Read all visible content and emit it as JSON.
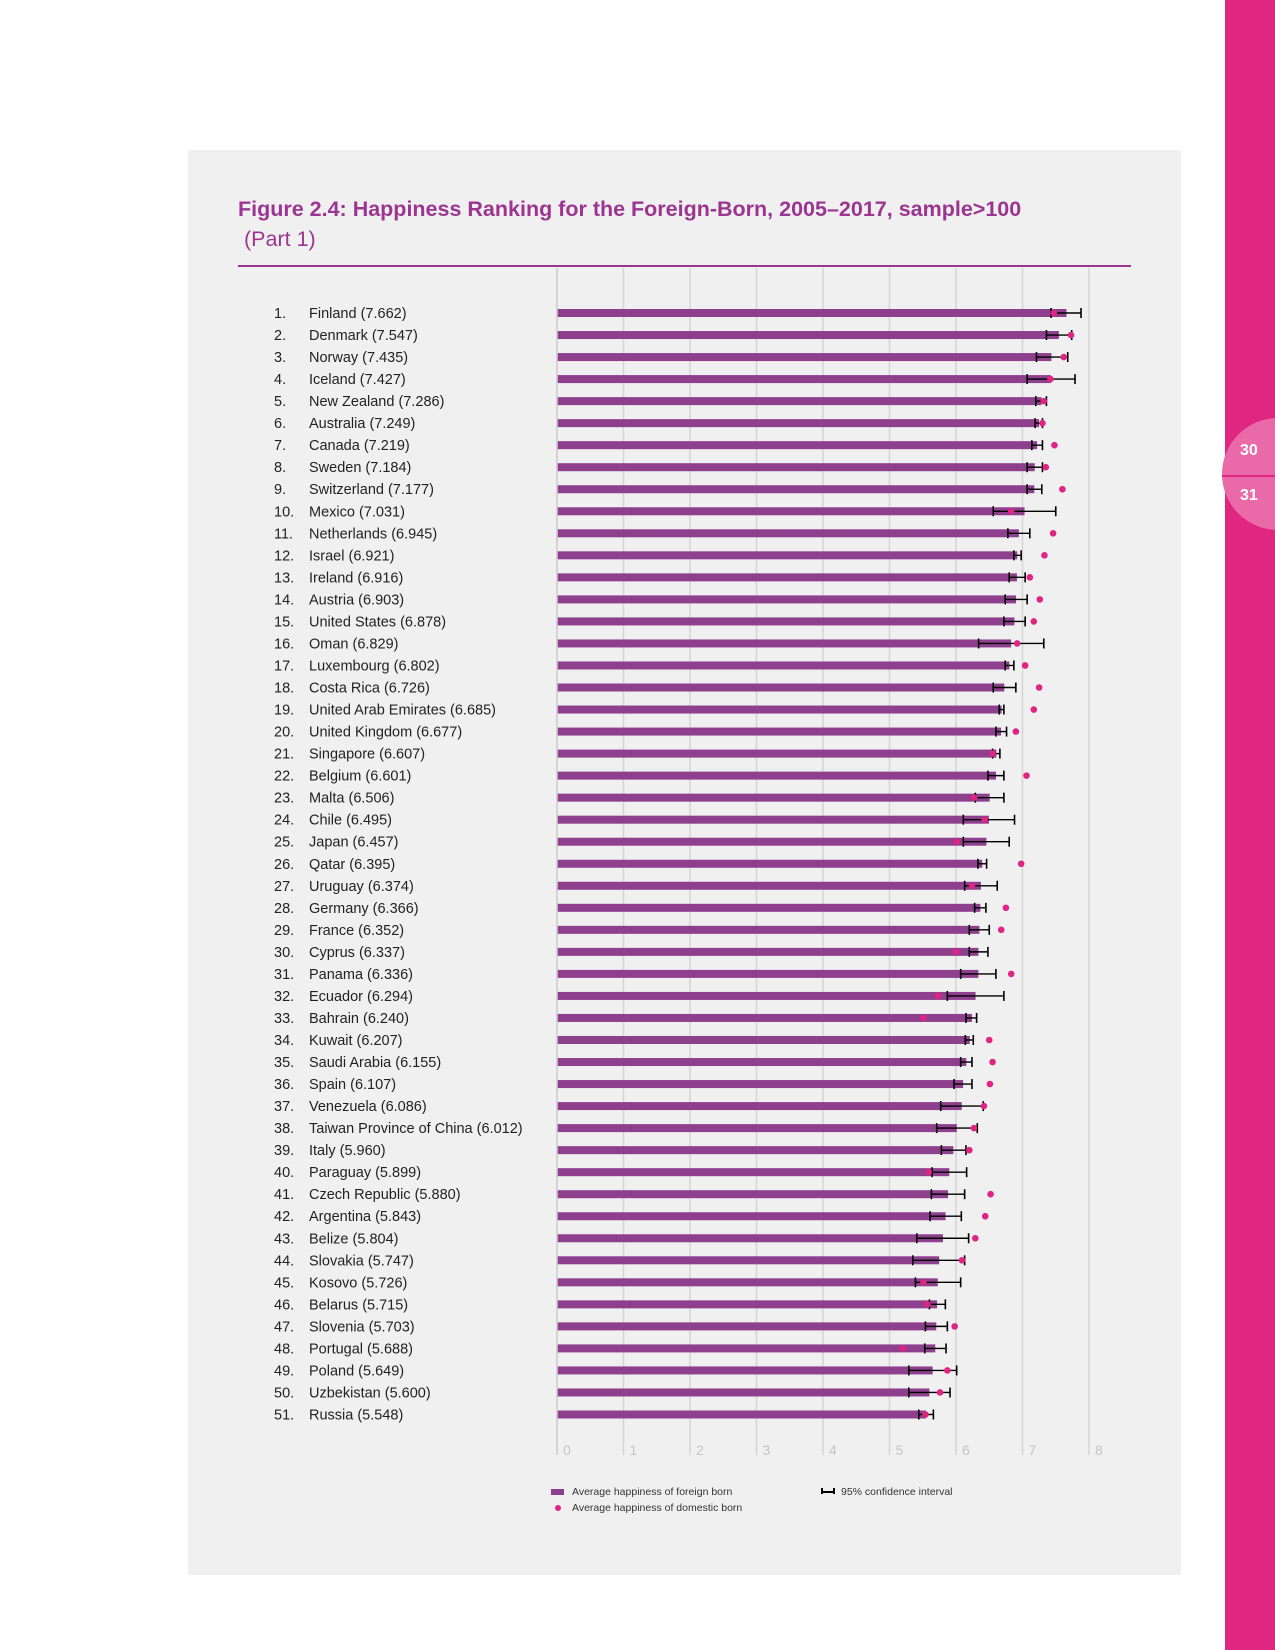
{
  "page": {
    "page_numbers": [
      "30",
      "31"
    ],
    "active_page": "30"
  },
  "figure": {
    "title": "Figure 2.4: Happiness Ranking for the Foreign-Born, 2005–2017, sample>100",
    "subtitle": "(Part 1)"
  },
  "legend": {
    "foreign": "Average happiness of foreign born",
    "domestic": "Average happiness of domestic born",
    "ci": "95% confidence interval"
  },
  "colors": {
    "bar": "#8e3f8e",
    "dot": "#de2583",
    "accent": "#9c3591",
    "sidebar": "#df2680"
  },
  "chart_data": {
    "type": "bar",
    "orientation": "horizontal",
    "title": "Figure 2.4: Happiness Ranking for the Foreign-Born, 2005–2017, sample>100 (Part 1)",
    "xlim": [
      0,
      8
    ],
    "xticks": [
      "0",
      "1",
      "2",
      "3",
      "4",
      "5",
      "6",
      "7",
      "8"
    ],
    "grid": true,
    "legend_position": "bottom",
    "series": [
      {
        "name": "Average happiness of foreign born",
        "kind": "bar"
      },
      {
        "name": "Average happiness of domestic born",
        "kind": "dot"
      },
      {
        "name": "95% confidence interval",
        "kind": "errorbar"
      }
    ],
    "rows": [
      {
        "rank": "1.",
        "label": "Finland (7.662)",
        "value": 7.662,
        "domestic": 7.47,
        "ci": [
          7.43,
          7.88
        ]
      },
      {
        "rank": "2.",
        "label": "Denmark (7.547)",
        "value": 7.547,
        "domestic": 7.73,
        "ci": [
          7.36,
          7.74
        ]
      },
      {
        "rank": "3.",
        "label": "Norway (7.435)",
        "value": 7.435,
        "domestic": 7.62,
        "ci": [
          7.21,
          7.68
        ]
      },
      {
        "rank": "4.",
        "label": "Iceland (7.427)",
        "value": 7.427,
        "domestic": 7.42,
        "ci": [
          7.07,
          7.79
        ]
      },
      {
        "rank": "5.",
        "label": "New Zealand (7.286)",
        "value": 7.286,
        "domestic": 7.32,
        "ci": [
          7.2,
          7.36
        ]
      },
      {
        "rank": "6.",
        "label": "Australia (7.249)",
        "value": 7.249,
        "domestic": 7.3,
        "ci": [
          7.19,
          7.3
        ]
      },
      {
        "rank": "7.",
        "label": "Canada (7.219)",
        "value": 7.219,
        "domestic": 7.48,
        "ci": [
          7.14,
          7.3
        ]
      },
      {
        "rank": "8.",
        "label": "Sweden (7.184)",
        "value": 7.184,
        "domestic": 7.35,
        "ci": [
          7.07,
          7.3
        ]
      },
      {
        "rank": "9.",
        "label": "Switzerland (7.177)",
        "value": 7.177,
        "domestic": 7.6,
        "ci": [
          7.07,
          7.29
        ]
      },
      {
        "rank": "10.",
        "label": "Mexico (7.031)",
        "value": 7.031,
        "domestic": 6.83,
        "ci": [
          6.56,
          7.5
        ]
      },
      {
        "rank": "11.",
        "label": "Netherlands (6.945)",
        "value": 6.945,
        "domestic": 7.46,
        "ci": [
          6.78,
          7.11
        ]
      },
      {
        "rank": "12.",
        "label": "Israel (6.921)",
        "value": 6.921,
        "domestic": 7.33,
        "ci": [
          6.87,
          6.98
        ]
      },
      {
        "rank": "13.",
        "label": "Ireland (6.916)",
        "value": 6.916,
        "domestic": 7.11,
        "ci": [
          6.8,
          7.04
        ]
      },
      {
        "rank": "14.",
        "label": "Austria (6.903)",
        "value": 6.903,
        "domestic": 7.26,
        "ci": [
          6.74,
          7.07
        ]
      },
      {
        "rank": "15.",
        "label": "United States (6.878)",
        "value": 6.878,
        "domestic": 7.17,
        "ci": [
          6.72,
          7.04
        ]
      },
      {
        "rank": "16.",
        "label": "Oman (6.829)",
        "value": 6.829,
        "domestic": 6.92,
        "ci": [
          6.34,
          7.32
        ]
      },
      {
        "rank": "17.",
        "label": "Luxembourg (6.802)",
        "value": 6.802,
        "domestic": 7.04,
        "ci": [
          6.74,
          6.87
        ]
      },
      {
        "rank": "18.",
        "label": "Costa Rica (6.726)",
        "value": 6.726,
        "domestic": 7.25,
        "ci": [
          6.56,
          6.9
        ]
      },
      {
        "rank": "19.",
        "label": "United Arab Emirates (6.685)",
        "value": 6.685,
        "domestic": 7.17,
        "ci": [
          6.65,
          6.72
        ]
      },
      {
        "rank": "20.",
        "label": "United Kingdom (6.677)",
        "value": 6.677,
        "domestic": 6.9,
        "ci": [
          6.6,
          6.76
        ]
      },
      {
        "rank": "21.",
        "label": "Singapore (6.607)",
        "value": 6.607,
        "domestic": 6.55,
        "ci": [
          6.55,
          6.66
        ]
      },
      {
        "rank": "22.",
        "label": "Belgium (6.601)",
        "value": 6.601,
        "domestic": 7.06,
        "ci": [
          6.48,
          6.72
        ]
      },
      {
        "rank": "23.",
        "label": "Malta (6.506)",
        "value": 6.506,
        "domestic": 6.27,
        "ci": [
          6.29,
          6.72
        ]
      },
      {
        "rank": "24.",
        "label": "Chile (6.495)",
        "value": 6.495,
        "domestic": 6.43,
        "ci": [
          6.11,
          6.88
        ]
      },
      {
        "rank": "25.",
        "label": "Japan (6.457)",
        "value": 6.457,
        "domestic": 6.01,
        "ci": [
          6.11,
          6.8
        ]
      },
      {
        "rank": "26.",
        "label": "Qatar (6.395)",
        "value": 6.395,
        "domestic": 6.98,
        "ci": [
          6.33,
          6.46
        ]
      },
      {
        "rank": "27.",
        "label": "Uruguay (6.374)",
        "value": 6.374,
        "domestic": 6.24,
        "ci": [
          6.13,
          6.62
        ]
      },
      {
        "rank": "28.",
        "label": "Germany (6.366)",
        "value": 6.366,
        "domestic": 6.75,
        "ci": [
          6.28,
          6.45
        ]
      },
      {
        "rank": "29.",
        "label": "France (6.352)",
        "value": 6.352,
        "domestic": 6.68,
        "ci": [
          6.2,
          6.5
        ]
      },
      {
        "rank": "30.",
        "label": "Cyprus (6.337)",
        "value": 6.337,
        "domestic": 6.0,
        "ci": [
          6.2,
          6.48
        ]
      },
      {
        "rank": "31.",
        "label": "Panama (6.336)",
        "value": 6.336,
        "domestic": 6.83,
        "ci": [
          6.07,
          6.6
        ]
      },
      {
        "rank": "32.",
        "label": "Ecuador (6.294)",
        "value": 6.294,
        "domestic": 5.73,
        "ci": [
          5.87,
          6.72
        ]
      },
      {
        "rank": "33.",
        "label": "Bahrain (6.240)",
        "value": 6.24,
        "domestic": 5.51,
        "ci": [
          6.15,
          6.31
        ]
      },
      {
        "rank": "34.",
        "label": "Kuwait (6.207)",
        "value": 6.207,
        "domestic": 6.5,
        "ci": [
          6.14,
          6.26
        ]
      },
      {
        "rank": "35.",
        "label": "Saudi Arabia (6.155)",
        "value": 6.155,
        "domestic": 6.55,
        "ci": [
          6.07,
          6.24
        ]
      },
      {
        "rank": "36.",
        "label": "Spain (6.107)",
        "value": 6.107,
        "domestic": 6.51,
        "ci": [
          5.97,
          6.24
        ]
      },
      {
        "rank": "37.",
        "label": "Venezuela (6.086)",
        "value": 6.086,
        "domestic": 6.42,
        "ci": [
          5.77,
          6.41
        ]
      },
      {
        "rank": "38.",
        "label": "Taiwan Province of China (6.012)",
        "value": 6.012,
        "domestic": 6.27,
        "ci": [
          5.71,
          6.32
        ]
      },
      {
        "rank": "39.",
        "label": "Italy (5.960)",
        "value": 5.96,
        "domestic": 6.2,
        "ci": [
          5.78,
          6.15
        ]
      },
      {
        "rank": "40.",
        "label": "Paraguay (5.899)",
        "value": 5.899,
        "domestic": 5.59,
        "ci": [
          5.64,
          6.16
        ]
      },
      {
        "rank": "41.",
        "label": "Czech Republic (5.880)",
        "value": 5.88,
        "domestic": 6.52,
        "ci": [
          5.63,
          6.13
        ]
      },
      {
        "rank": "42.",
        "label": "Argentina (5.843)",
        "value": 5.843,
        "domestic": 6.44,
        "ci": [
          5.61,
          6.08
        ]
      },
      {
        "rank": "43.",
        "label": "Belize (5.804)",
        "value": 5.804,
        "domestic": 6.29,
        "ci": [
          5.41,
          6.19
        ]
      },
      {
        "rank": "44.",
        "label": "Slovakia (5.747)",
        "value": 5.747,
        "domestic": 6.09,
        "ci": [
          5.35,
          6.13
        ]
      },
      {
        "rank": "45.",
        "label": "Kosovo (5.726)",
        "value": 5.726,
        "domestic": 5.51,
        "ci": [
          5.39,
          6.07
        ]
      },
      {
        "rank": "46.",
        "label": "Belarus (5.715)",
        "value": 5.715,
        "domestic": 5.57,
        "ci": [
          5.6,
          5.84
        ]
      },
      {
        "rank": "47.",
        "label": "Slovenia (5.703)",
        "value": 5.703,
        "domestic": 5.98,
        "ci": [
          5.54,
          5.87
        ]
      },
      {
        "rank": "48.",
        "label": "Portugal (5.688)",
        "value": 5.688,
        "domestic": 5.2,
        "ci": [
          5.53,
          5.85
        ]
      },
      {
        "rank": "49.",
        "label": "Poland (5.649)",
        "value": 5.649,
        "domestic": 5.87,
        "ci": [
          5.29,
          6.01
        ]
      },
      {
        "rank": "50.",
        "label": "Uzbekistan (5.600)",
        "value": 5.6,
        "domestic": 5.76,
        "ci": [
          5.29,
          5.91
        ]
      },
      {
        "rank": "51.",
        "label": "Russia (5.548)",
        "value": 5.548,
        "domestic": 5.54,
        "ci": [
          5.44,
          5.66
        ]
      }
    ]
  }
}
